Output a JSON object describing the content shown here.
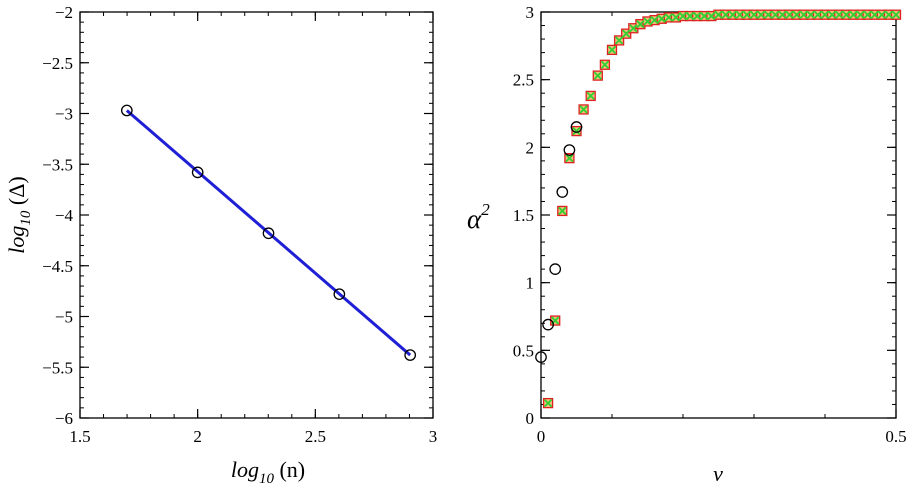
{
  "chart_data": [
    {
      "type": "scatter",
      "title": "",
      "xlabel": "log10 (n)",
      "ylabel": "log10 (Δ)",
      "xlabel_main": "log",
      "xlabel_sub": "10",
      "xlabel_arg": " (n)",
      "ylabel_main": "log",
      "ylabel_sub": "10",
      "ylabel_arg": " (Δ)",
      "xlim": [
        1.5,
        3
      ],
      "ylim": [
        -6,
        -2
      ],
      "xticks": [
        1.5,
        2,
        2.5,
        3
      ],
      "xtick_labels": [
        "1.5",
        "2",
        "2.5",
        "3"
      ],
      "yticks": [
        -6,
        -5.5,
        -5,
        -4.5,
        -4,
        -3.5,
        -3,
        -2.5,
        -2
      ],
      "ytick_labels": [
        "−6",
        "−5.5",
        "−5",
        "−4.5",
        "−4",
        "−3.5",
        "−3",
        "−2.5",
        "−2"
      ],
      "series": [
        {
          "name": "data",
          "marker": "circle",
          "color": "#000000",
          "x": [
            1.699,
            2.0,
            2.301,
            2.602,
            2.903
          ],
          "y": [
            -2.97,
            -3.58,
            -4.18,
            -4.78,
            -5.38
          ]
        },
        {
          "name": "fit",
          "marker": "line",
          "color": "#1f1fd6",
          "x": [
            1.699,
            2.903
          ],
          "y": [
            -2.97,
            -5.38
          ]
        }
      ]
    },
    {
      "type": "scatter",
      "title": "",
      "xlabel": "ν",
      "ylabel": "α2",
      "xlabel_main": "ν",
      "ylabel_main": "α",
      "ylabel_sup": "2",
      "xlim": [
        0,
        0.5
      ],
      "ylim": [
        0,
        3
      ],
      "xticks": [
        0,
        0.5
      ],
      "xtick_labels": [
        "0",
        "0.5"
      ],
      "yticks": [
        0,
        0.5,
        1,
        1.5,
        2,
        2.5,
        3
      ],
      "ytick_labels": [
        "0",
        "0.5",
        "1",
        "1.5",
        "2",
        "2.5",
        "3"
      ],
      "series": [
        {
          "name": "circles",
          "marker": "circle",
          "color": "#000000",
          "x": [
            0.0,
            0.01,
            0.02,
            0.03,
            0.04,
            0.05
          ],
          "y": [
            0.45,
            0.69,
            1.1,
            1.67,
            1.98,
            2.15
          ]
        },
        {
          "name": "squares",
          "marker": "square",
          "color": "#e02020",
          "fill": "#f2c080",
          "x": [
            0.01,
            0.02,
            0.03,
            0.04,
            0.05,
            0.06,
            0.07,
            0.08,
            0.09,
            0.1,
            0.11,
            0.12,
            0.13,
            0.14,
            0.15,
            0.16,
            0.17,
            0.18,
            0.19,
            0.2,
            0.21,
            0.22,
            0.23,
            0.24,
            0.25,
            0.26,
            0.27,
            0.28,
            0.29,
            0.3,
            0.31,
            0.32,
            0.33,
            0.34,
            0.35,
            0.36,
            0.37,
            0.38,
            0.39,
            0.4,
            0.41,
            0.42,
            0.43,
            0.44,
            0.45,
            0.46,
            0.47,
            0.48,
            0.49,
            0.5
          ],
          "y": [
            0.11,
            0.72,
            1.53,
            1.92,
            2.12,
            2.28,
            2.38,
            2.53,
            2.61,
            2.72,
            2.79,
            2.84,
            2.88,
            2.91,
            2.93,
            2.94,
            2.95,
            2.96,
            2.96,
            2.97,
            2.97,
            2.97,
            2.97,
            2.97,
            2.98,
            2.98,
            2.98,
            2.98,
            2.98,
            2.98,
            2.98,
            2.98,
            2.98,
            2.98,
            2.98,
            2.98,
            2.98,
            2.98,
            2.98,
            2.98,
            2.98,
            2.98,
            2.98,
            2.98,
            2.98,
            2.98,
            2.98,
            2.98,
            2.98,
            2.98
          ]
        },
        {
          "name": "crosses",
          "marker": "cross",
          "color": "#2fd02f",
          "x": [
            0.01,
            0.02,
            0.03,
            0.04,
            0.05,
            0.06,
            0.07,
            0.08,
            0.09,
            0.1,
            0.11,
            0.12,
            0.13,
            0.14,
            0.15,
            0.16,
            0.17,
            0.18,
            0.19,
            0.2,
            0.21,
            0.22,
            0.23,
            0.24,
            0.25,
            0.26,
            0.27,
            0.28,
            0.29,
            0.3,
            0.31,
            0.32,
            0.33,
            0.34,
            0.35,
            0.36,
            0.37,
            0.38,
            0.39,
            0.4,
            0.41,
            0.42,
            0.43,
            0.44,
            0.45,
            0.46,
            0.47,
            0.48,
            0.49,
            0.5
          ],
          "y": [
            0.11,
            0.72,
            1.53,
            1.92,
            2.12,
            2.28,
            2.38,
            2.53,
            2.61,
            2.72,
            2.79,
            2.84,
            2.88,
            2.91,
            2.93,
            2.94,
            2.95,
            2.96,
            2.96,
            2.97,
            2.97,
            2.97,
            2.97,
            2.97,
            2.98,
            2.98,
            2.98,
            2.98,
            2.98,
            2.98,
            2.98,
            2.98,
            2.98,
            2.98,
            2.98,
            2.98,
            2.98,
            2.98,
            2.98,
            2.98,
            2.98,
            2.98,
            2.98,
            2.98,
            2.98,
            2.98,
            2.98,
            2.98,
            2.98,
            2.98
          ]
        }
      ]
    }
  ]
}
